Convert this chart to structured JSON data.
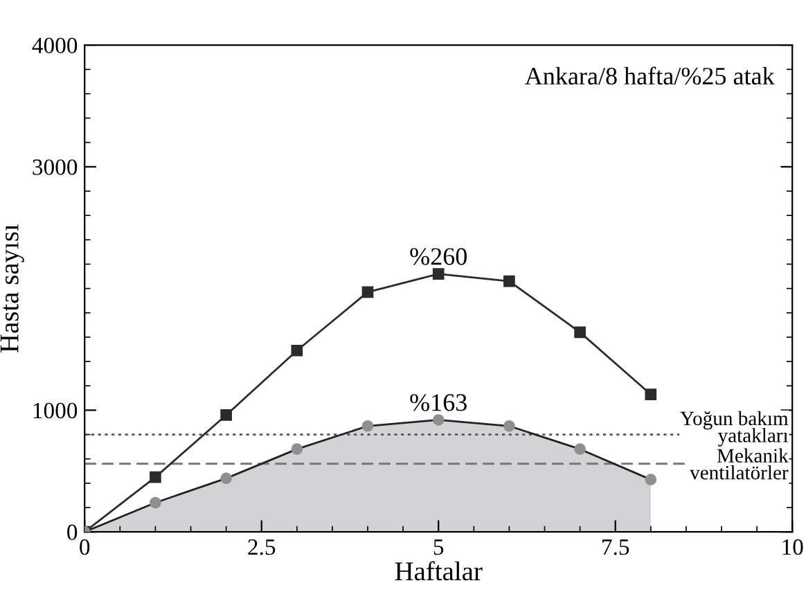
{
  "chart_data": {
    "type": "line",
    "xlabel": "Haftalar",
    "ylabel": "Hasta sayısı",
    "x": [
      0,
      1,
      2,
      3,
      4,
      5,
      6,
      7,
      8
    ],
    "series": [
      {
        "color": "#2b2b2b",
        "marker": "square",
        "values": [
          0,
          450,
          960,
          1490,
          1970,
          2120,
          2060,
          1640,
          1130
        ]
      },
      {
        "type": "area",
        "color": "#d3d3d5",
        "marker": "circle",
        "values": [
          0,
          240,
          440,
          680,
          870,
          920,
          870,
          680,
          430
        ]
      }
    ],
    "xlim": [
      0,
      10
    ],
    "xticks": [
      0,
      2.5,
      5,
      7.5,
      10
    ],
    "ylim": [
      0,
      4000
    ],
    "yticks": [
      0,
      1000,
      3000,
      4000
    ],
    "grid": false,
    "legend": false,
    "ref_lines": [
      {
        "axis": "y",
        "value": 800,
        "label": "Yoğun bakım\nyatakları",
        "line_style": "dotted",
        "color": "#555555"
      },
      {
        "axis": "y",
        "value": 560,
        "label": "Mekanik\nventilatörler",
        "line_style": "dashed",
        "color": "#777777"
      }
    ],
    "annotations": [
      "Ankara/8 hafta/%25 atak",
      {
        "text": "%260",
        "x": 5,
        "y": 2120
      },
      {
        "text": "%163",
        "x": 5,
        "y": 920
      }
    ]
  }
}
